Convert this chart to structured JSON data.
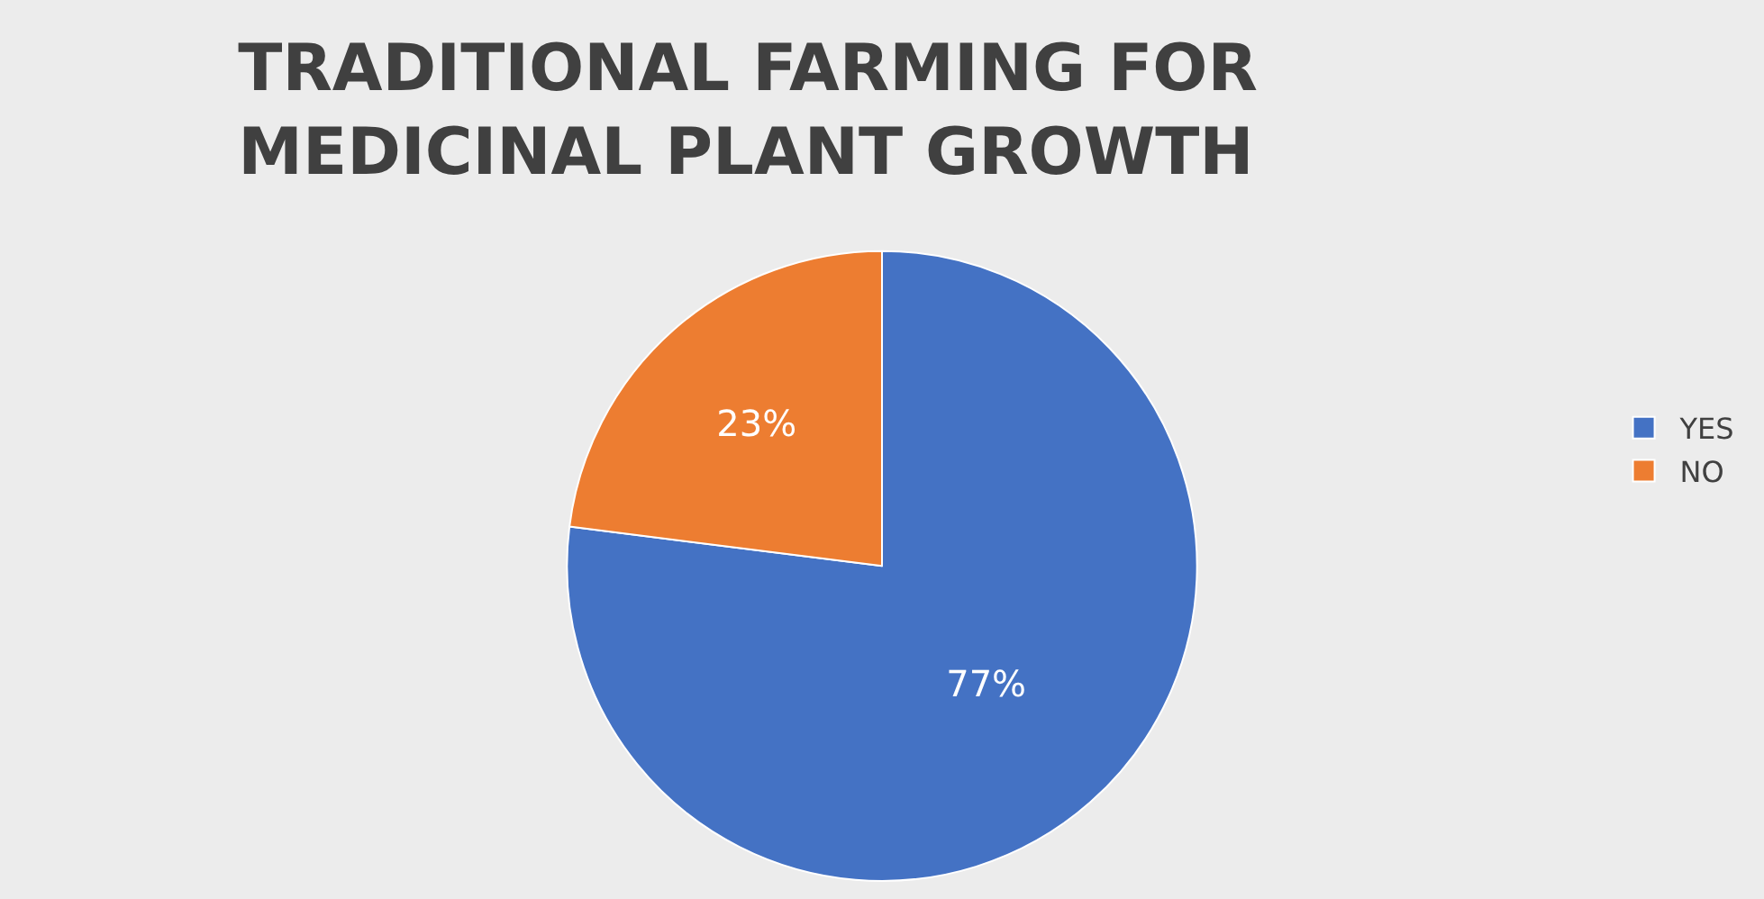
{
  "chart_data": {
    "type": "pie",
    "title": "TRADITIONAL FARMING FOR\nMEDICINAL PLANT GROWTH",
    "categories": [
      "YES",
      "NO"
    ],
    "values": [
      77,
      23
    ],
    "colors": [
      "#4472c4",
      "#ed7d31"
    ],
    "value_labels": [
      "77%",
      "23%"
    ],
    "legend": "right"
  }
}
